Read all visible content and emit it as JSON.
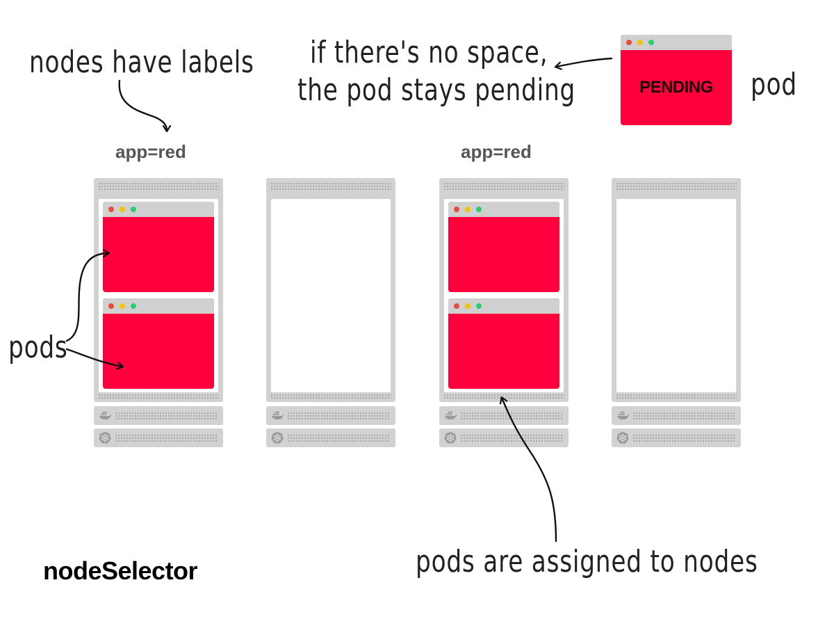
{
  "title": "nodeSelector",
  "annotations": {
    "nodes_have_labels": "nodes have labels",
    "no_space_line1": "if there's no space,",
    "no_space_line2": "the pod stays pending",
    "pod": "pod",
    "pods": "pods",
    "assigned": "pods are assigned to nodes"
  },
  "pending_pod": {
    "status": "PENDING",
    "color": "#ff003c"
  },
  "nodes": [
    {
      "label": "app=red",
      "pods": 2
    },
    {
      "label": "",
      "pods": 0
    },
    {
      "label": "app=red",
      "pods": 2
    },
    {
      "label": "",
      "pods": 0
    }
  ],
  "colors": {
    "pod": "#ff003c",
    "node": "#d2d2d2",
    "dot_red": "#e74c3c",
    "dot_yellow": "#f1c40f",
    "dot_green": "#2ecc71"
  },
  "icons": {
    "container_runtime": "docker-whale-icon",
    "kubelet": "kubernetes-wheel-icon"
  }
}
